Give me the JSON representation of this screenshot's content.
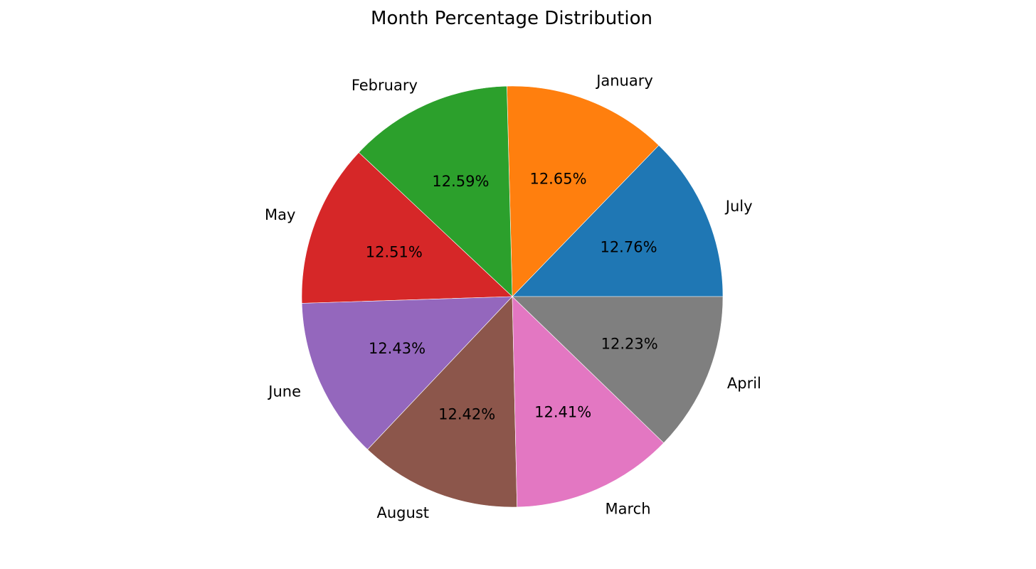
{
  "chart_data": {
    "type": "pie",
    "title": "Month Percentage Distribution",
    "start_angle_deg": 0,
    "direction": "counterclockwise",
    "slices": [
      {
        "label": "July",
        "value": 12.76,
        "pct_label": "12.76%",
        "color": "#1f77b4"
      },
      {
        "label": "January",
        "value": 12.65,
        "pct_label": "12.65%",
        "color": "#ff7f0e"
      },
      {
        "label": "February",
        "value": 12.59,
        "pct_label": "12.59%",
        "color": "#2ca02c"
      },
      {
        "label": "May",
        "value": 12.51,
        "pct_label": "12.51%",
        "color": "#d62728"
      },
      {
        "label": "June",
        "value": 12.43,
        "pct_label": "12.43%",
        "color": "#9467bd"
      },
      {
        "label": "August",
        "value": 12.42,
        "pct_label": "12.42%",
        "color": "#8c564b"
      },
      {
        "label": "March",
        "value": 12.41,
        "pct_label": "12.41%",
        "color": "#e377c2"
      },
      {
        "label": "April",
        "value": 12.23,
        "pct_label": "12.23%",
        "color": "#7f7f7f"
      }
    ]
  }
}
